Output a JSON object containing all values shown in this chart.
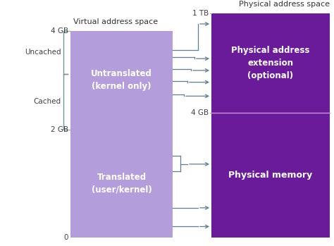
{
  "bg_color": "#ffffff",
  "left_box_color": "#b39ddb",
  "right_top_box_color": "#6a1b9a",
  "right_bottom_box_color": "#6a1b9a",
  "arrow_color": "#607d8b",
  "divider_color": "#ce93d8",
  "bracket_color": "#78909c",
  "tick_color": "#9e9e9e",
  "text_color_white": "#ffffff",
  "text_color_black": "#333333",
  "label_color": "#424242",
  "virtual_label": "Virtual address space",
  "physical_label": "Physical address space",
  "untranslated_text": "Untranslated\n(kernel only)",
  "translated_text": "Translated\n(user/kernel)",
  "phys_ext_text": "Physical address\nextension\n(optional)",
  "phys_mem_text": "Physical memory",
  "label_4gb_left": "4 GB",
  "label_2gb": "2 GB",
  "label_0": "0",
  "label_1tb": "1 TB",
  "label_4gb_right": "4 GB",
  "label_uncached": "Uncached",
  "label_cached": "Cached"
}
